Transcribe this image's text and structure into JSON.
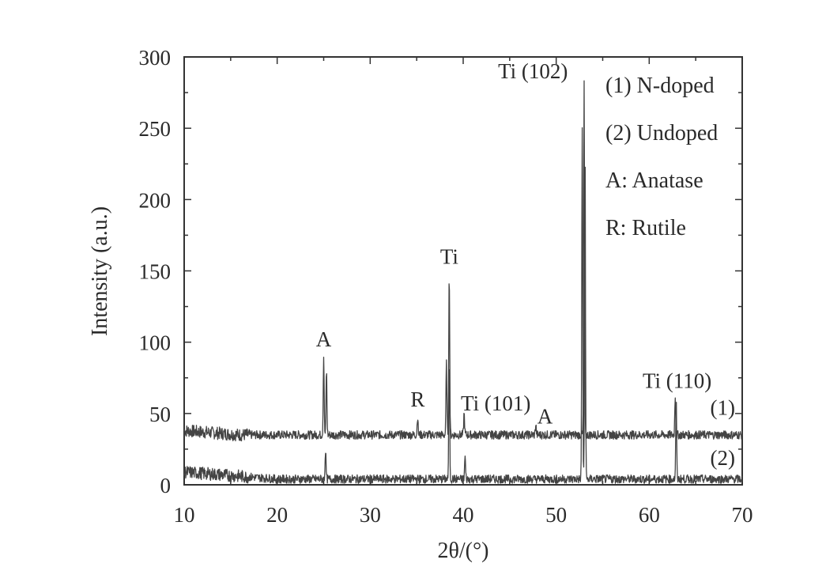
{
  "chart_data": {
    "type": "line",
    "xlabel": "2θ/(°)",
    "ylabel": "Intensity (a.u.)",
    "xlim": [
      10,
      70
    ],
    "ylim": [
      0,
      300
    ],
    "xticks": [
      10,
      20,
      30,
      40,
      50,
      60,
      70
    ],
    "yticks": [
      0,
      50,
      100,
      150,
      200,
      250,
      300
    ],
    "grid": false,
    "legend_position": "top-right",
    "legend": [
      "(1) N-doped",
      "(2) Undoped",
      "A: Anatase",
      "R: Rutile"
    ],
    "series": [
      {
        "name": "(1)",
        "baseline": 35,
        "peaks": [
          {
            "x": 25.0,
            "y": 90
          },
          {
            "x": 25.3,
            "y": 80
          },
          {
            "x": 35.1,
            "y": 48
          },
          {
            "x": 38.2,
            "y": 85
          },
          {
            "x": 38.5,
            "y": 148
          },
          {
            "x": 40.1,
            "y": 50
          },
          {
            "x": 47.8,
            "y": 42
          },
          {
            "x": 53.0,
            "y": 283
          },
          {
            "x": 62.8,
            "y": 63
          }
        ]
      },
      {
        "name": "(2)",
        "baseline": 4,
        "peaks": [
          {
            "x": 25.2,
            "y": 25
          },
          {
            "x": 38.5,
            "y": 85
          },
          {
            "x": 40.2,
            "y": 20
          },
          {
            "x": 52.8,
            "y": 250
          },
          {
            "x": 53.1,
            "y": 240
          },
          {
            "x": 62.9,
            "y": 60
          }
        ]
      }
    ],
    "annotations": [
      {
        "text": "A",
        "x": 25.0,
        "y": 97
      },
      {
        "text": "R",
        "x": 35.1,
        "y": 55
      },
      {
        "text": "Ti",
        "x": 38.5,
        "y": 155
      },
      {
        "text": "Ti (101)",
        "x": 43.5,
        "y": 52
      },
      {
        "text": "A",
        "x": 48.8,
        "y": 43
      },
      {
        "text": "Ti (102)",
        "x": 47.5,
        "y": 285
      },
      {
        "text": "Ti (110)",
        "x": 63.0,
        "y": 68
      },
      {
        "text": "(1)",
        "x": 67.9,
        "y": 49
      },
      {
        "text": "(2)",
        "x": 67.9,
        "y": 14
      }
    ]
  }
}
